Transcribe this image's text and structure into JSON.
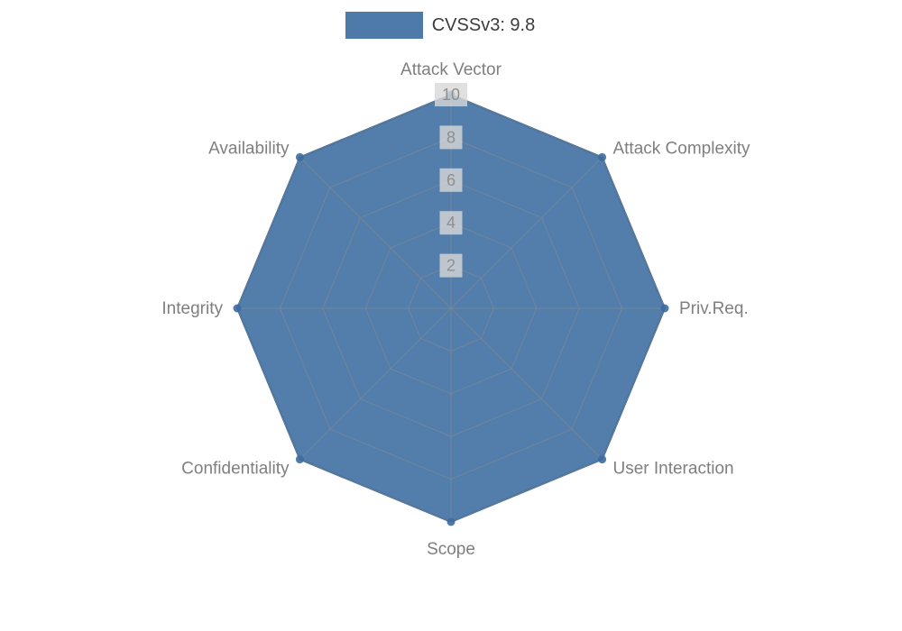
{
  "legend": {
    "label": "CVSSv3: 9.8",
    "swatch_color": "#4d7aa9"
  },
  "chart_data": {
    "type": "radar",
    "categories": [
      "Attack Vector",
      "Attack Complexity",
      "Priv.Req.",
      "User Interaction",
      "Scope",
      "Confidentiality",
      "Integrity",
      "Availability"
    ],
    "series": [
      {
        "name": "CVSSv3: 9.8",
        "values": [
          10,
          10,
          10,
          10,
          10,
          10,
          10,
          10
        ]
      }
    ],
    "ticks": [
      2,
      4,
      6,
      8,
      10
    ],
    "rlim": [
      0,
      10
    ],
    "grid": true,
    "legend_position": "top-center",
    "fill_color": "#4d7aa9",
    "edge_color": "#3d6b9e",
    "vertex_dot_color": "#3d6b9e",
    "grid_color": "#8a8a8a",
    "axis_label_color": "#7f7f7f",
    "tick_label_color": "#8f8f8f",
    "tick_label_bg": "#d8d8d8"
  }
}
